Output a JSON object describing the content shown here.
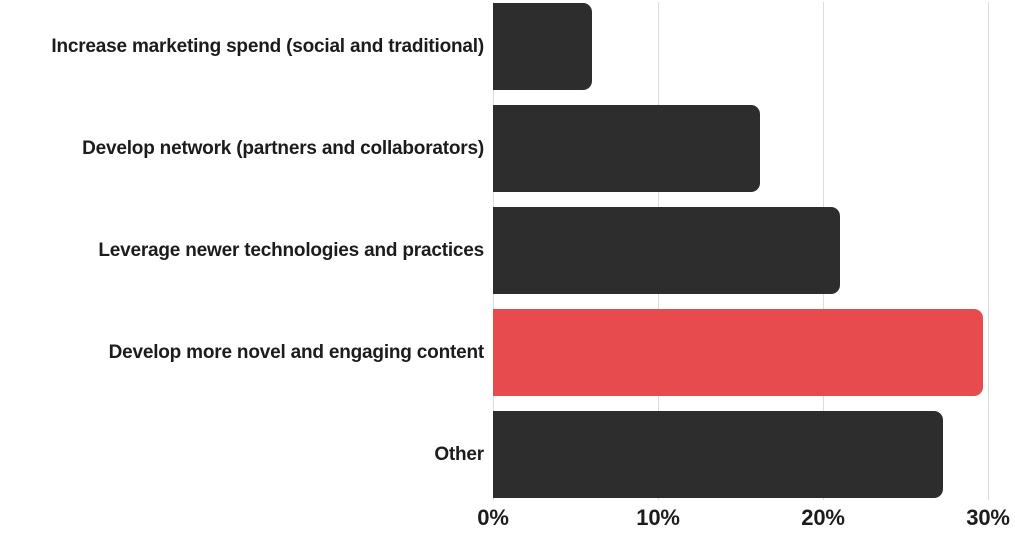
{
  "chart_data": {
    "type": "bar",
    "orientation": "horizontal",
    "title": "",
    "categories": [
      "Increase marketing spend (social and traditional)",
      "Develop network (partners and collaborators)",
      "Leverage newer technologies and practices",
      "Develop more novel and engaging content",
      "Other"
    ],
    "values": [
      6.0,
      16.2,
      21.0,
      29.7,
      27.3
    ],
    "unit": "%",
    "bar_colors": [
      "#2d2d2d",
      "#2d2d2d",
      "#2d2d2d",
      "#e74b4d",
      "#2d2d2d"
    ],
    "highlighted_category": "Develop more novel and engaging content",
    "xlim": [
      0,
      30
    ],
    "x_ticks": [
      {
        "value": 0,
        "label": "0%"
      },
      {
        "value": 10,
        "label": "10%"
      },
      {
        "value": 20,
        "label": "20%"
      },
      {
        "value": 30,
        "label": "30%"
      }
    ],
    "grid": "vertical-gridlines-only",
    "legend": "none",
    "data_labels": "none"
  },
  "colors": {
    "background": "#ffffff",
    "bar_default": "#2d2d2d",
    "bar_highlight": "#e74b4d",
    "gridline": "#dcdcdc",
    "text": "#1c1c1c"
  }
}
